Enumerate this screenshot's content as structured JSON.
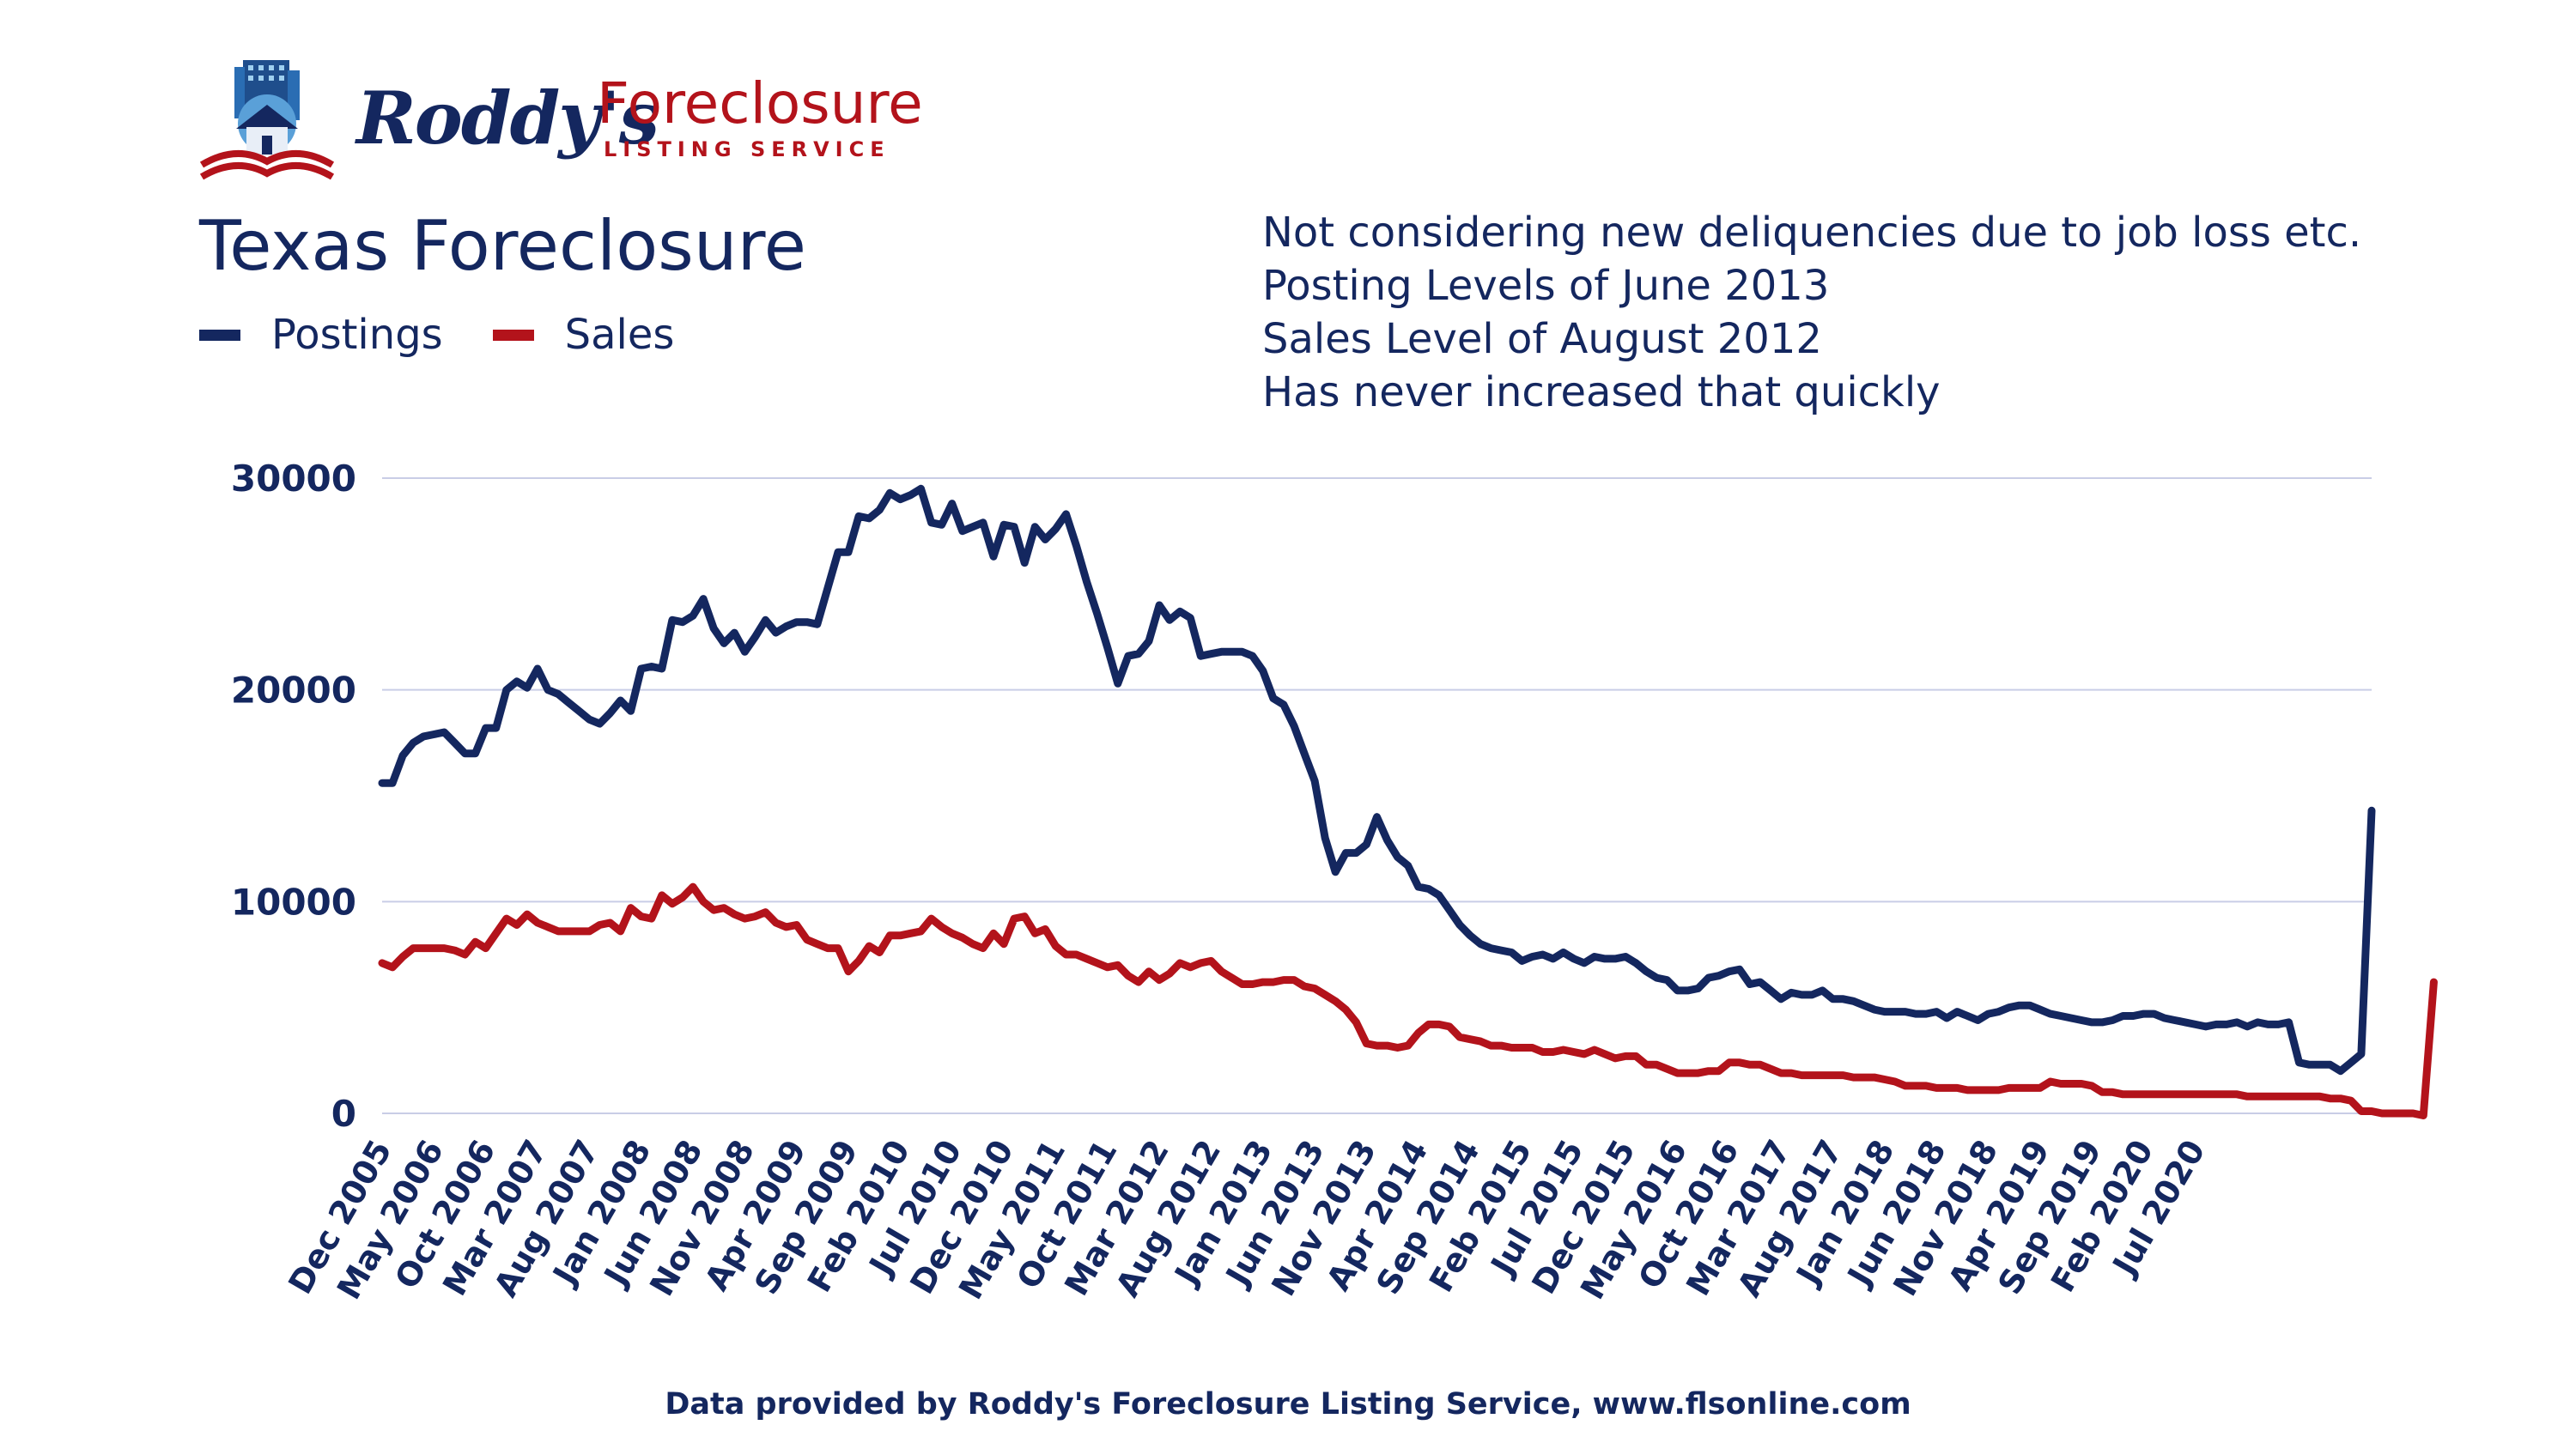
{
  "logo": {
    "name": "Roddy's",
    "brand": "Foreclosure",
    "tagline": "LISTING SERVICE"
  },
  "colors": {
    "postings": "#14275f",
    "sales": "#b3131b",
    "grid": "#c9cde6"
  },
  "notes": [
    "Not considering new deliquencies due to job loss etc.",
    "Posting Levels of June 2013",
    "Sales Level of August 2012",
    "Has never increased that quickly"
  ],
  "footer": "Data provided by Roddy's Foreclosure Listing Service, www.flsonline.com",
  "chart_data": {
    "type": "line",
    "title": "Texas Foreclosure",
    "xlabel": "",
    "ylabel": "",
    "ylim": [
      0,
      30000
    ],
    "yticks": [
      0,
      10000,
      20000,
      30000
    ],
    "grid": true,
    "legend_position": "top-left",
    "x_start": "Dec 2005",
    "x_step_months": 1,
    "x_ticks": [
      "Dec 2005",
      "May 2006",
      "Oct 2006",
      "Mar 2007",
      "Aug 2007",
      "Jan 2008",
      "Jun 2008",
      "Nov 2008",
      "Apr 2009",
      "Sep 2009",
      "Feb 2010",
      "Jul 2010",
      "Dec 2010",
      "May 2011",
      "Oct 2011",
      "Mar 2012",
      "Aug 2012",
      "Jan 2013",
      "Jun 2013",
      "Nov 2013",
      "Apr 2014",
      "Sep 2014",
      "Feb 2015",
      "Jul 2015",
      "Dec 2015",
      "May 2016",
      "Oct 2016",
      "Mar 2017",
      "Aug 2017",
      "Jan 2018",
      "Jun 2018",
      "Nov 2018",
      "Apr 2019",
      "Sep 2019",
      "Feb 2020",
      "Jul 2020"
    ],
    "series": [
      {
        "name": "Postings",
        "values": [
          15600,
          15600,
          16900,
          17500,
          17800,
          17900,
          18000,
          17500,
          17000,
          17000,
          18200,
          18200,
          20000,
          20400,
          20100,
          21000,
          20000,
          19800,
          19400,
          19000,
          18600,
          18400,
          18900,
          19500,
          19000,
          21000,
          21100,
          21000,
          23300,
          23200,
          23500,
          24300,
          22900,
          22200,
          22700,
          21800,
          22500,
          23300,
          22700,
          23000,
          23200,
          23200,
          23100,
          24800,
          26500,
          26500,
          28200,
          28100,
          28500,
          29300,
          29000,
          29200,
          29500,
          27900,
          27800,
          28800,
          27500,
          27700,
          27900,
          26300,
          27800,
          27700,
          26000,
          27700,
          27100,
          27600,
          28300,
          26800,
          25100,
          23600,
          22000,
          20300,
          21600,
          21700,
          22300,
          24000,
          23300,
          23700,
          23400,
          21600,
          21700,
          21800,
          21800,
          21800,
          21600,
          20900,
          19600,
          19300,
          18300,
          17000,
          15700,
          13000,
          11400,
          12300,
          12300,
          12700,
          14000,
          12900,
          12100,
          11700,
          10700,
          10600,
          10300,
          9600,
          8900,
          8400,
          8000,
          7800,
          7700,
          7600,
          7200,
          7400,
          7500,
          7300,
          7600,
          7300,
          7100,
          7400,
          7300,
          7300,
          7400,
          7100,
          6700,
          6400,
          6300,
          5800,
          5800,
          5900,
          6400,
          6500,
          6700,
          6800,
          6100,
          6200,
          5800,
          5400,
          5700,
          5600,
          5600,
          5800,
          5400,
          5400,
          5300,
          5100,
          4900,
          4800,
          4800,
          4800,
          4700,
          4700,
          4800,
          4500,
          4800,
          4600,
          4400,
          4700,
          4800,
          5000,
          5100,
          5100,
          4900,
          4700,
          4600,
          4500,
          4400,
          4300,
          4300,
          4400,
          4600,
          4600,
          4700,
          4700,
          4500,
          4400,
          4300,
          4200,
          4100,
          4200,
          4200,
          4300,
          4100,
          4300,
          4200,
          4200,
          4300,
          2400,
          2300,
          2300,
          2300,
          2000,
          2400,
          2800,
          14300
        ]
      },
      {
        "name": "Sales",
        "values": [
          7100,
          6900,
          7400,
          7800,
          7800,
          7800,
          7800,
          7700,
          7500,
          8100,
          7800,
          8500,
          9200,
          8900,
          9400,
          9000,
          8800,
          8600,
          8600,
          8600,
          8600,
          8900,
          9000,
          8600,
          9700,
          9300,
          9200,
          10300,
          9900,
          10200,
          10700,
          10000,
          9600,
          9700,
          9400,
          9200,
          9300,
          9500,
          9000,
          8800,
          8900,
          8200,
          8000,
          7800,
          7800,
          6700,
          7200,
          7900,
          7600,
          8400,
          8400,
          8500,
          8600,
          9200,
          8800,
          8500,
          8300,
          8000,
          7800,
          8500,
          8000,
          9200,
          9300,
          8500,
          8700,
          7900,
          7500,
          7500,
          7300,
          7100,
          6900,
          7000,
          6500,
          6200,
          6700,
          6300,
          6600,
          7100,
          6900,
          7100,
          7200,
          6700,
          6400,
          6100,
          6100,
          6200,
          6200,
          6300,
          6300,
          6000,
          5900,
          5600,
          5300,
          4900,
          4300,
          3300,
          3200,
          3200,
          3100,
          3200,
          3800,
          4200,
          4200,
          4100,
          3600,
          3500,
          3400,
          3200,
          3200,
          3100,
          3100,
          3100,
          2900,
          2900,
          3000,
          2900,
          2800,
          3000,
          2800,
          2600,
          2700,
          2700,
          2300,
          2300,
          2100,
          1900,
          1900,
          1900,
          2000,
          2000,
          2400,
          2400,
          2300,
          2300,
          2100,
          1900,
          1900,
          1800,
          1800,
          1800,
          1800,
          1800,
          1700,
          1700,
          1700,
          1600,
          1500,
          1300,
          1300,
          1300,
          1200,
          1200,
          1200,
          1100,
          1100,
          1100,
          1100,
          1200,
          1200,
          1200,
          1200,
          1500,
          1400,
          1400,
          1400,
          1300,
          1000,
          1000,
          900,
          900,
          900,
          900,
          900,
          900,
          900,
          900,
          900,
          900,
          900,
          900,
          800,
          800,
          800,
          800,
          800,
          800,
          800,
          800,
          700,
          700,
          600,
          100,
          100,
          0,
          0,
          0,
          0,
          -100,
          6200
        ]
      }
    ]
  }
}
